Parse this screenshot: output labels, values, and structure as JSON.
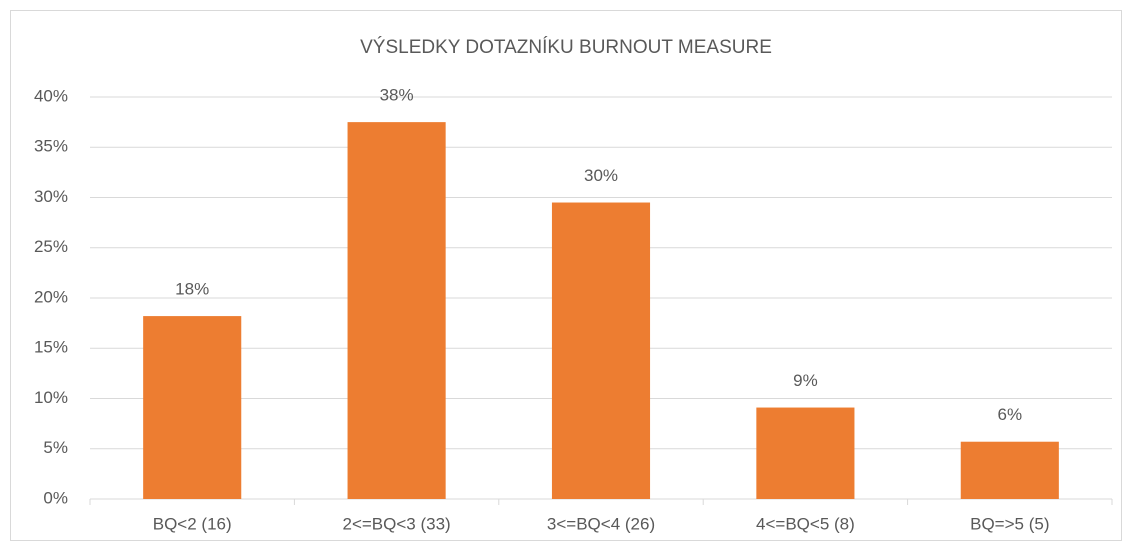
{
  "chart_data": {
    "type": "bar",
    "title": "VÝSLEDKY DOTAZNÍKU BURNOUT MEASURE",
    "categories": [
      "BQ<2 (16)",
      "2<=BQ<3 (33)",
      "3<=BQ<4 (26)",
      "4<=BQ<5 (8)",
      "BQ=>5 (5)"
    ],
    "values": [
      18.2,
      37.5,
      29.5,
      9.1,
      5.7
    ],
    "value_labels": [
      "18%",
      "38%",
      "30%",
      "9%",
      "6%"
    ],
    "color": "#ed7d31",
    "ylim": [
      0,
      40
    ],
    "yticks": [
      {
        "value": 0,
        "label": "0%"
      },
      {
        "value": 5,
        "label": "5%"
      },
      {
        "value": 10,
        "label": "10%"
      },
      {
        "value": 15,
        "label": "15%"
      },
      {
        "value": 20,
        "label": "20%"
      },
      {
        "value": 25,
        "label": "25%"
      },
      {
        "value": 30,
        "label": "30%"
      },
      {
        "value": 35,
        "label": "35%"
      },
      {
        "value": 40,
        "label": "40%"
      }
    ],
    "grid": true
  }
}
